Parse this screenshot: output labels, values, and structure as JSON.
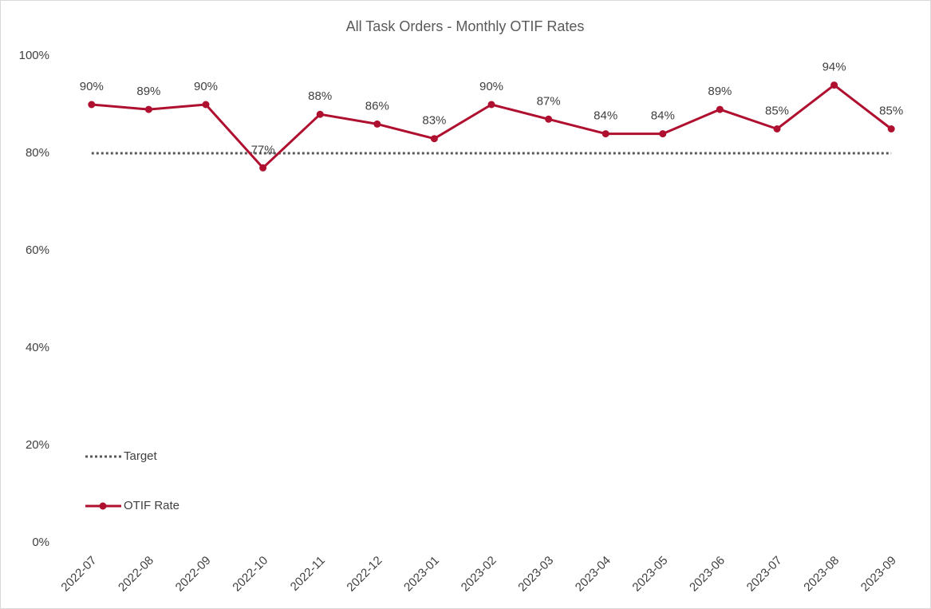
{
  "chart_data": {
    "type": "line",
    "title": "All Task Orders - Monthly OTIF Rates",
    "categories": [
      "2022-07",
      "2022-08",
      "2022-09",
      "2022-10",
      "2022-11",
      "2022-12",
      "2023-01",
      "2023-02",
      "2023-03",
      "2023-04",
      "2023-05",
      "2023-06",
      "2023-07",
      "2023-08",
      "2023-09"
    ],
    "series": [
      {
        "name": "Target",
        "color": "#595959",
        "style": "dotted",
        "values": [
          80,
          80,
          80,
          80,
          80,
          80,
          80,
          80,
          80,
          80,
          80,
          80,
          80,
          80,
          80
        ]
      },
      {
        "name": "OTIF Rate",
        "color": "#b0102f",
        "style": "solid",
        "values": [
          90,
          89,
          90,
          77,
          88,
          86,
          83,
          90,
          87,
          84,
          84,
          89,
          85,
          94,
          85
        ],
        "value_labels": [
          "90%",
          "89%",
          "90%",
          "77%",
          "88%",
          "86%",
          "83%",
          "90%",
          "87%",
          "84%",
          "84%",
          "89%",
          "85%",
          "94%",
          "85%"
        ]
      }
    ],
    "ylim": [
      0,
      100
    ],
    "yticks": [
      {
        "value": 0,
        "label": "0%"
      },
      {
        "value": 20,
        "label": "20%"
      },
      {
        "value": 40,
        "label": "40%"
      },
      {
        "value": 60,
        "label": "60%"
      },
      {
        "value": 80,
        "label": "80%"
      },
      {
        "value": 100,
        "label": "100%"
      }
    ],
    "grid": false,
    "legend": "lower left"
  }
}
